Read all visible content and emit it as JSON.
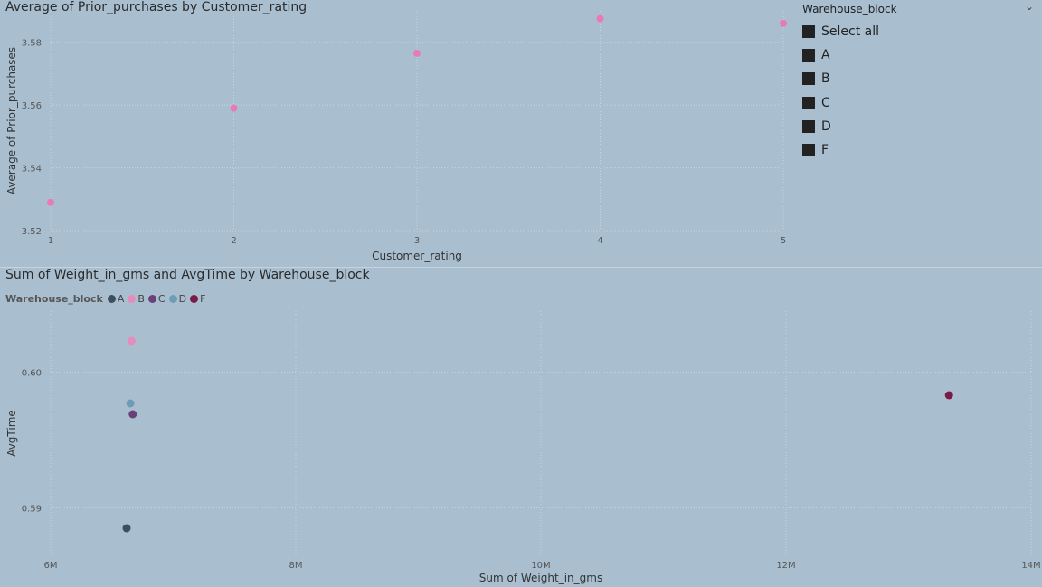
{
  "chart_data": [
    {
      "type": "scatter",
      "title": "Average of Prior_purchases by Customer_rating",
      "xlabel": "Customer_rating",
      "ylabel": "Average of Prior_purchases",
      "xlim": [
        1,
        5
      ],
      "ylim": [
        3.52,
        3.59
      ],
      "xticks": [
        1,
        2,
        3,
        4,
        5
      ],
      "xtick_labels": [
        "1",
        "2",
        "3",
        "4",
        "5"
      ],
      "yticks": [
        3.52,
        3.54,
        3.56,
        3.58
      ],
      "ytick_labels": [
        "3.52",
        "3.54",
        "3.56",
        "3.58"
      ],
      "grid": true,
      "color": "#e87ab9",
      "points": [
        {
          "x": 1,
          "y": 3.529
        },
        {
          "x": 2,
          "y": 3.559
        },
        {
          "x": 3,
          "y": 3.5765
        },
        {
          "x": 4,
          "y": 3.5875
        },
        {
          "x": 5,
          "y": 3.586
        }
      ]
    },
    {
      "type": "scatter",
      "title": "Sum of Weight_in_gms and AvgTime by Warehouse_block",
      "xlabel": "Sum of Weight_in_gms",
      "ylabel": "AvgTime",
      "xlim": [
        6000000,
        14000000
      ],
      "ylim": [
        0.5865,
        0.6045
      ],
      "xticks": [
        6000000,
        8000000,
        10000000,
        12000000,
        14000000
      ],
      "xtick_labels": [
        "6M",
        "8M",
        "10M",
        "12M",
        "14M"
      ],
      "yticks": [
        0.59,
        0.6
      ],
      "ytick_labels": [
        "0.59",
        "0.60"
      ],
      "grid": true,
      "legend_title": "Warehouse_block",
      "legend_position": "top-left",
      "series": [
        {
          "name": "A",
          "color": "#3d4f5c",
          "points": [
            {
              "x": 6620000,
              "y": 0.5885
            }
          ]
        },
        {
          "name": "B",
          "color": "#e58cbf",
          "points": [
            {
              "x": 6660000,
              "y": 0.6023
            }
          ]
        },
        {
          "name": "C",
          "color": "#6b3f78",
          "points": [
            {
              "x": 6670000,
              "y": 0.5969
            }
          ]
        },
        {
          "name": "D",
          "color": "#6f9bb8",
          "points": [
            {
              "x": 6650000,
              "y": 0.5977
            }
          ]
        },
        {
          "name": "F",
          "color": "#7a1a48",
          "points": [
            {
              "x": 13330000,
              "y": 0.5983
            }
          ]
        }
      ]
    }
  ],
  "slicer": {
    "title": "Warehouse_block",
    "items": [
      "Select all",
      "A",
      "B",
      "C",
      "D",
      "F"
    ]
  }
}
